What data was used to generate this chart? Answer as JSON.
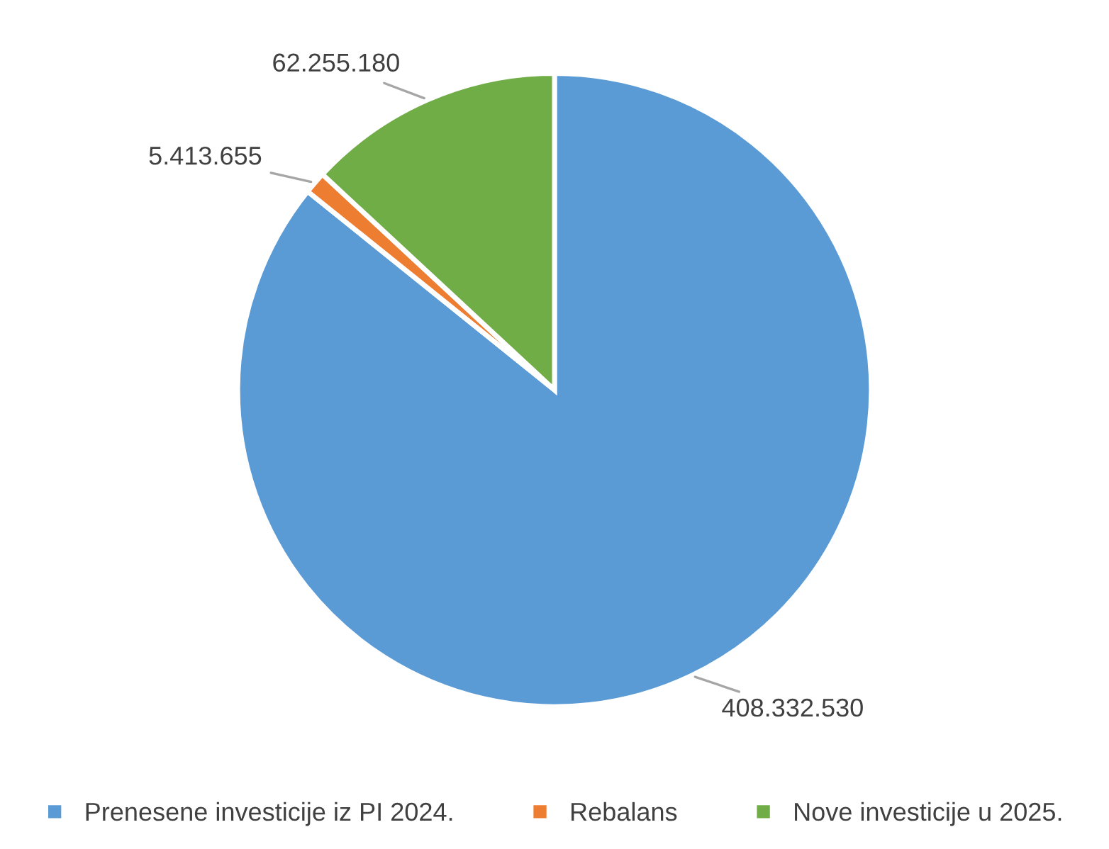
{
  "chart_data": {
    "type": "pie",
    "categories": [
      "Prenesene investicije iz PI 2024.",
      "Rebalans",
      "Nove investicije u 2025."
    ],
    "values": [
      408332530,
      5413655,
      62255180
    ],
    "value_labels": [
      "408.332.530",
      "5.413.655",
      "62.255.180"
    ],
    "colors": [
      "#5b9bd5",
      "#ed7d31",
      "#70ad47"
    ],
    "legend": "bottom"
  }
}
